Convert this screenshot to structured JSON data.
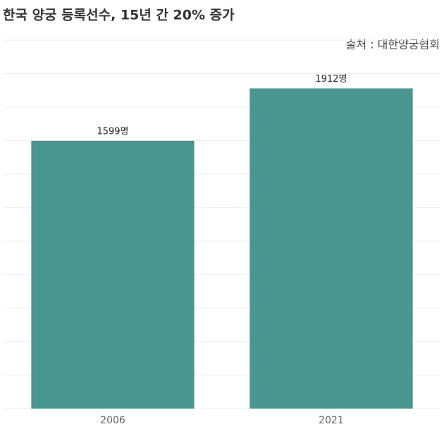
{
  "chart_data": {
    "type": "bar",
    "title": "한국 양궁 등록선수, 15년 간 20% 증가",
    "source": "출처 : 대한양궁협회",
    "categories": [
      "2006",
      "2021"
    ],
    "values": [
      1599,
      1912
    ],
    "value_labels": [
      "1599명",
      "1912명"
    ],
    "color": "#4a9690",
    "ylim": [
      0,
      2200
    ],
    "yticks": [
      0,
      200,
      400,
      600,
      800,
      1000,
      1200,
      1400,
      1600,
      1800,
      2000,
      2200
    ],
    "grid": true
  }
}
